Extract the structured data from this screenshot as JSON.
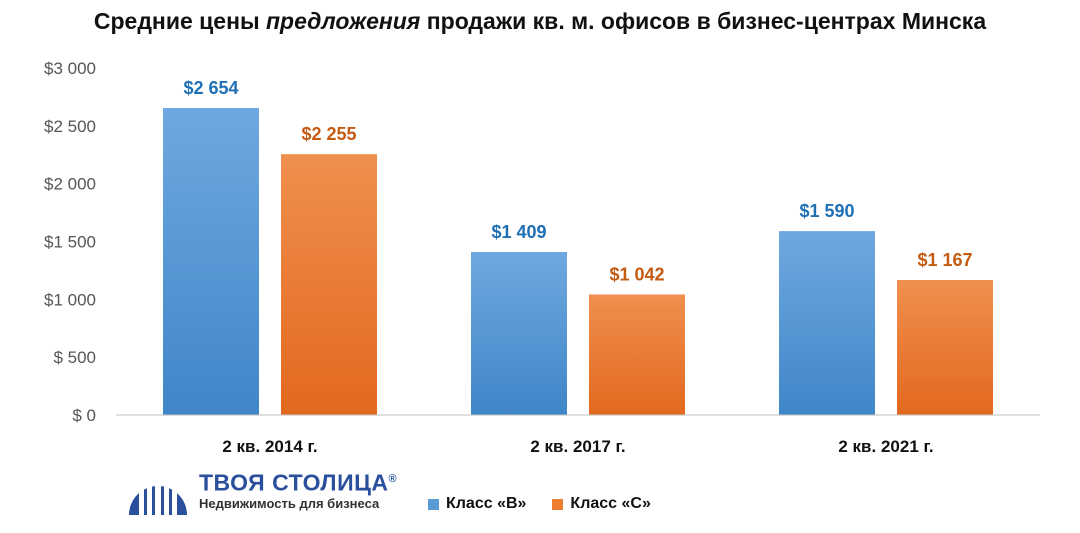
{
  "title": {
    "part1": "Средние цены ",
    "part2": "предложения",
    "part3": " продажи кв. м. офисов в бизнес-центрах Минска"
  },
  "logo": {
    "name": "ТВОЯ СТОЛИЦА",
    "registered": "®",
    "tagline": "Недвижимость для бизнеса"
  },
  "colors": {
    "series_b": "#5b9bd5",
    "series_c": "#ed7d31",
    "label_b": "#1f6fb5",
    "label_c": "#c55a11",
    "axis": "#bfbfbf"
  },
  "chart_data": {
    "type": "bar",
    "title": "Средние цены предложения продажи кв. м. офисов в бизнес-центрах Минска",
    "categories": [
      "2 кв. 2014 г.",
      "2 кв. 2017 г.",
      "2 кв. 2021 г."
    ],
    "series": [
      {
        "name": "Класс «В»",
        "values": [
          2654,
          1409,
          1590
        ],
        "labels": [
          "$2 654",
          "$1 409",
          "$1 590"
        ]
      },
      {
        "name": "Класс «С»",
        "values": [
          2255,
          1042,
          1167
        ],
        "labels": [
          "$2 255",
          "$1 042",
          "$1 167"
        ]
      }
    ],
    "ylim": [
      0,
      3000
    ],
    "yticks": [
      0,
      500,
      1000,
      1500,
      2000,
      2500,
      3000
    ],
    "ytick_labels": [
      "$ 0",
      "$ 500",
      "$1 000",
      "$1 500",
      "$2 000",
      "$2 500",
      "$3 000"
    ],
    "grid": false,
    "legend": "bottom"
  }
}
